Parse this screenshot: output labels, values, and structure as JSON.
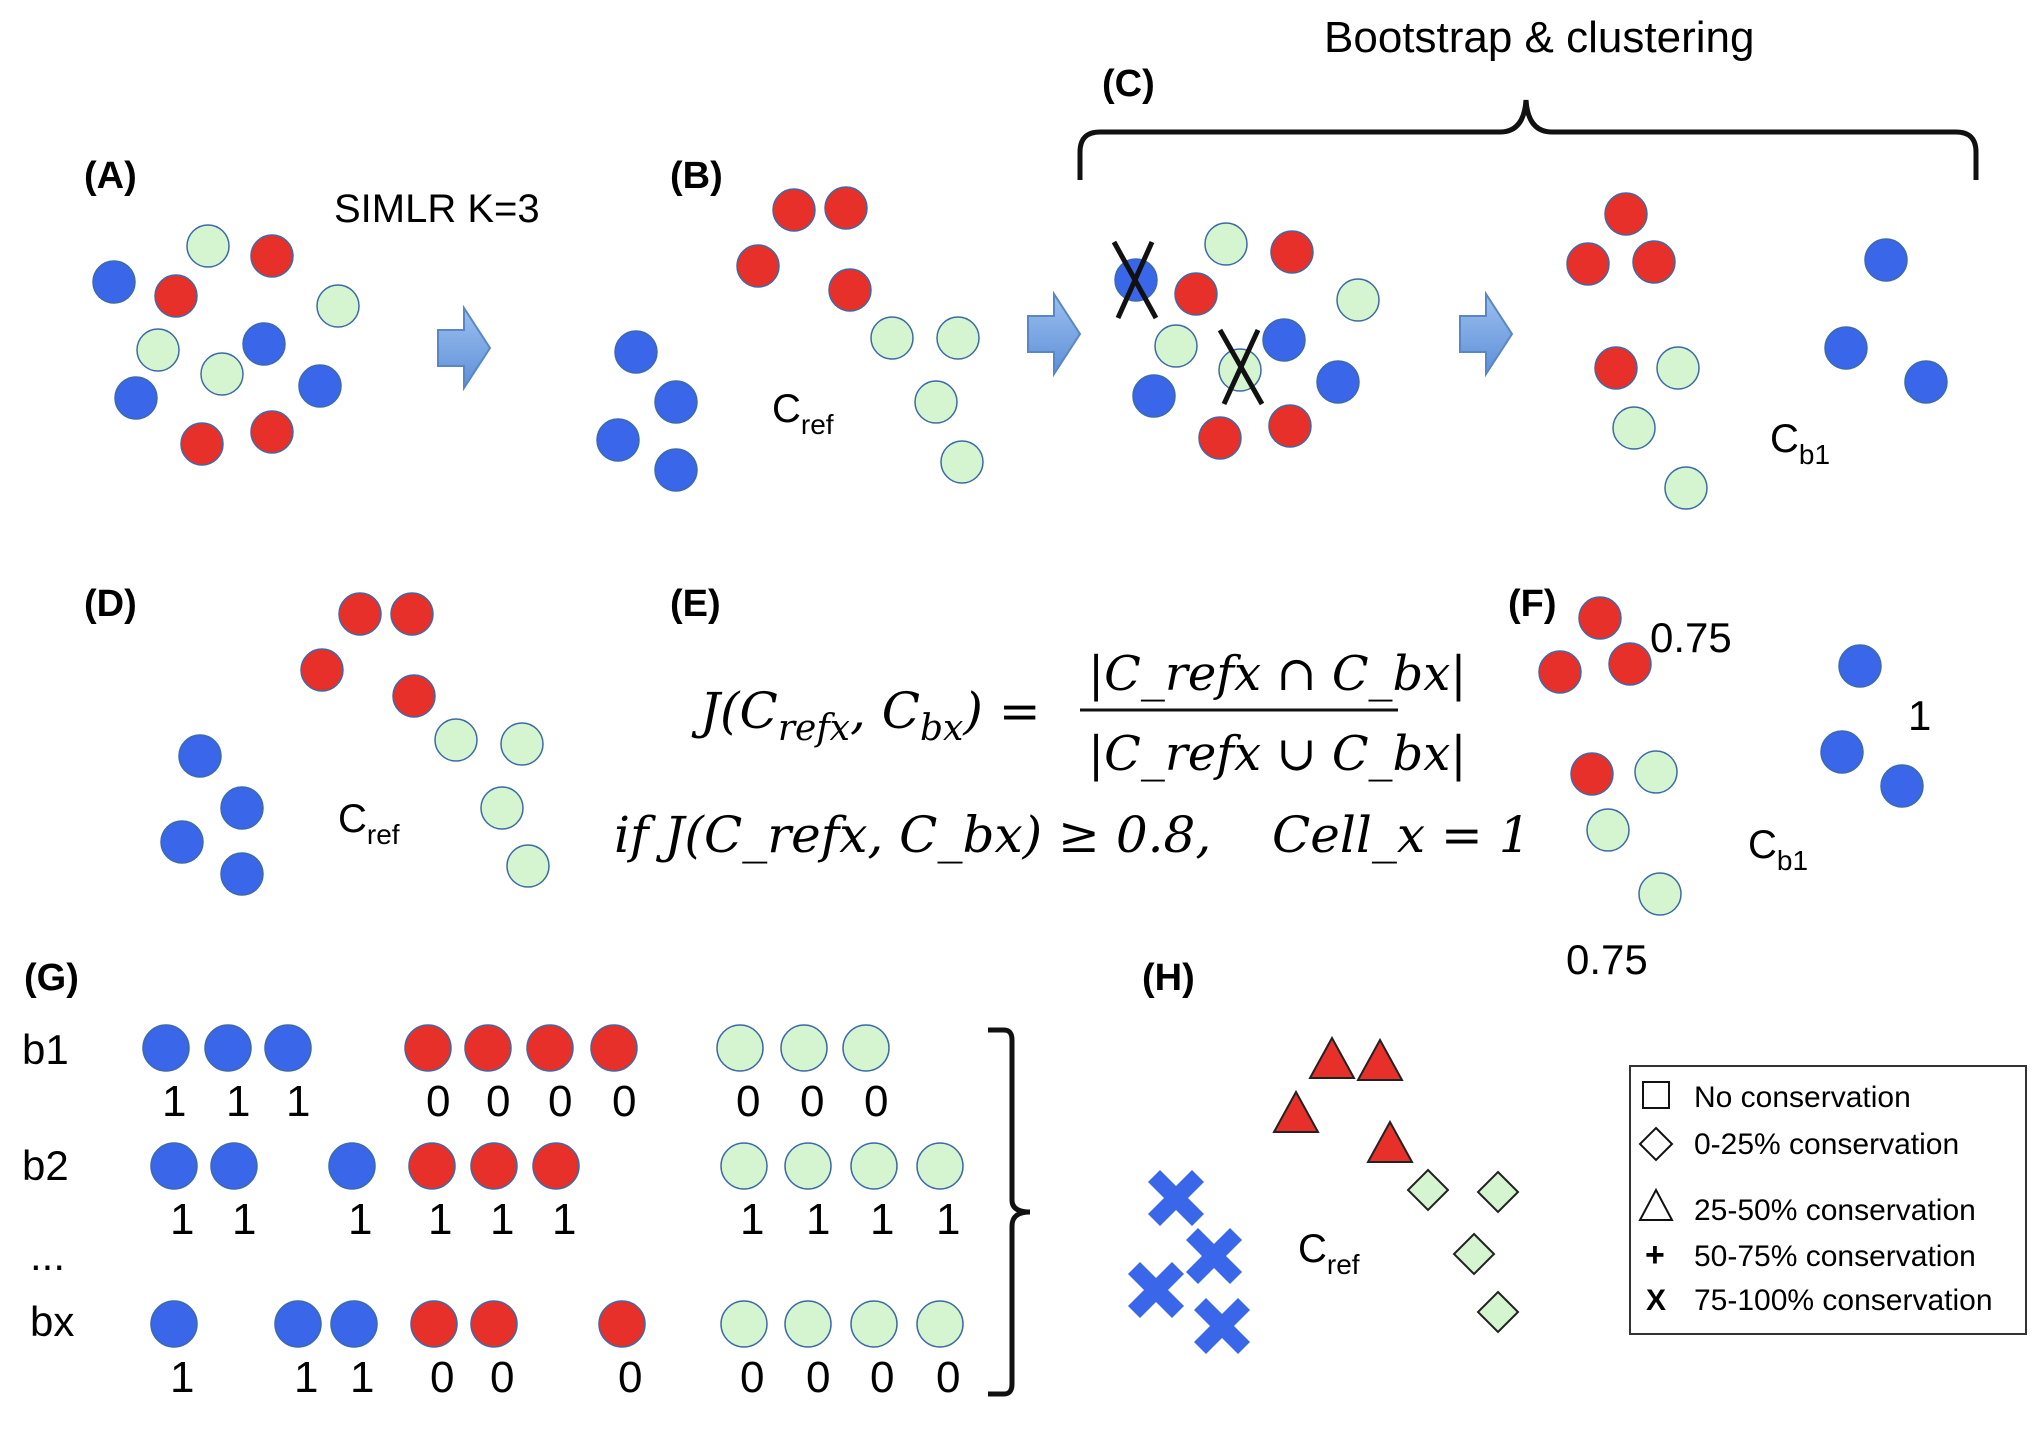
{
  "panels": {
    "A": {
      "label": "(A)",
      "arrow_text": "SIMLR K=3"
    },
    "B": {
      "label": "(B)",
      "cluster_label": {
        "main": "C",
        "sub": "ref"
      }
    },
    "C": {
      "label": "(C)",
      "bracket_title": "Bootstrap & clustering",
      "cluster_label": {
        "main": "C",
        "sub": "b1"
      }
    },
    "D": {
      "label": "(D)",
      "cluster_label": {
        "main": "C",
        "sub": "ref"
      }
    },
    "E": {
      "label": "(E)",
      "formula_lhs": "J(C",
      "formula_sub1": "refx",
      "formula_mid": ", C",
      "formula_sub2": "bx",
      "formula_close": ") =",
      "numerator": "|C_refx ∩ C_bx|",
      "denominator": "|C_refx ∪ C_bx|",
      "condition": "if J(C_refx, C_bx) ≥ 0.8,",
      "result": "Cell_x = 1"
    },
    "F": {
      "label": "(F)",
      "cluster_label": {
        "main": "C",
        "sub": "b1"
      },
      "scores": {
        "red": "0.75",
        "blue": "1",
        "green": "0.75"
      }
    },
    "G": {
      "label": "(G)",
      "rows": [
        {
          "name": "b1",
          "values": [
            "1",
            "1",
            "1",
            "0",
            "0",
            "0",
            "0",
            "0",
            "0",
            "0"
          ]
        },
        {
          "name": "b2",
          "values": [
            "1",
            "1",
            "1",
            "1",
            "1",
            "1",
            "1",
            "1",
            "1",
            "1"
          ]
        },
        {
          "name": "...",
          "values": []
        },
        {
          "name": "bx",
          "values": [
            "1",
            "1",
            "1",
            "0",
            "0",
            "0",
            "0",
            "0",
            "0",
            "0"
          ]
        }
      ]
    },
    "H": {
      "label": "(H)",
      "cluster_label": {
        "main": "C",
        "sub": "ref"
      },
      "legend": [
        {
          "symbol": "square",
          "text": "No conservation"
        },
        {
          "symbol": "diamond",
          "text": "0-25% conservation"
        },
        {
          "symbol": "triangle",
          "text": "25-50% conservation"
        },
        {
          "symbol": "plus",
          "text": "50-75% conservation"
        },
        {
          "symbol": "x",
          "text": "75-100% conservation"
        }
      ]
    }
  },
  "colors": {
    "red": "#e8302a",
    "blue": "#3a66ea",
    "green": "#d4f5d0",
    "outline": "#3d6aa8",
    "arrow": "#7aa6e0"
  },
  "icons": [
    "right-arrow-icon",
    "cross-mark-icon",
    "curly-brace-icon"
  ]
}
